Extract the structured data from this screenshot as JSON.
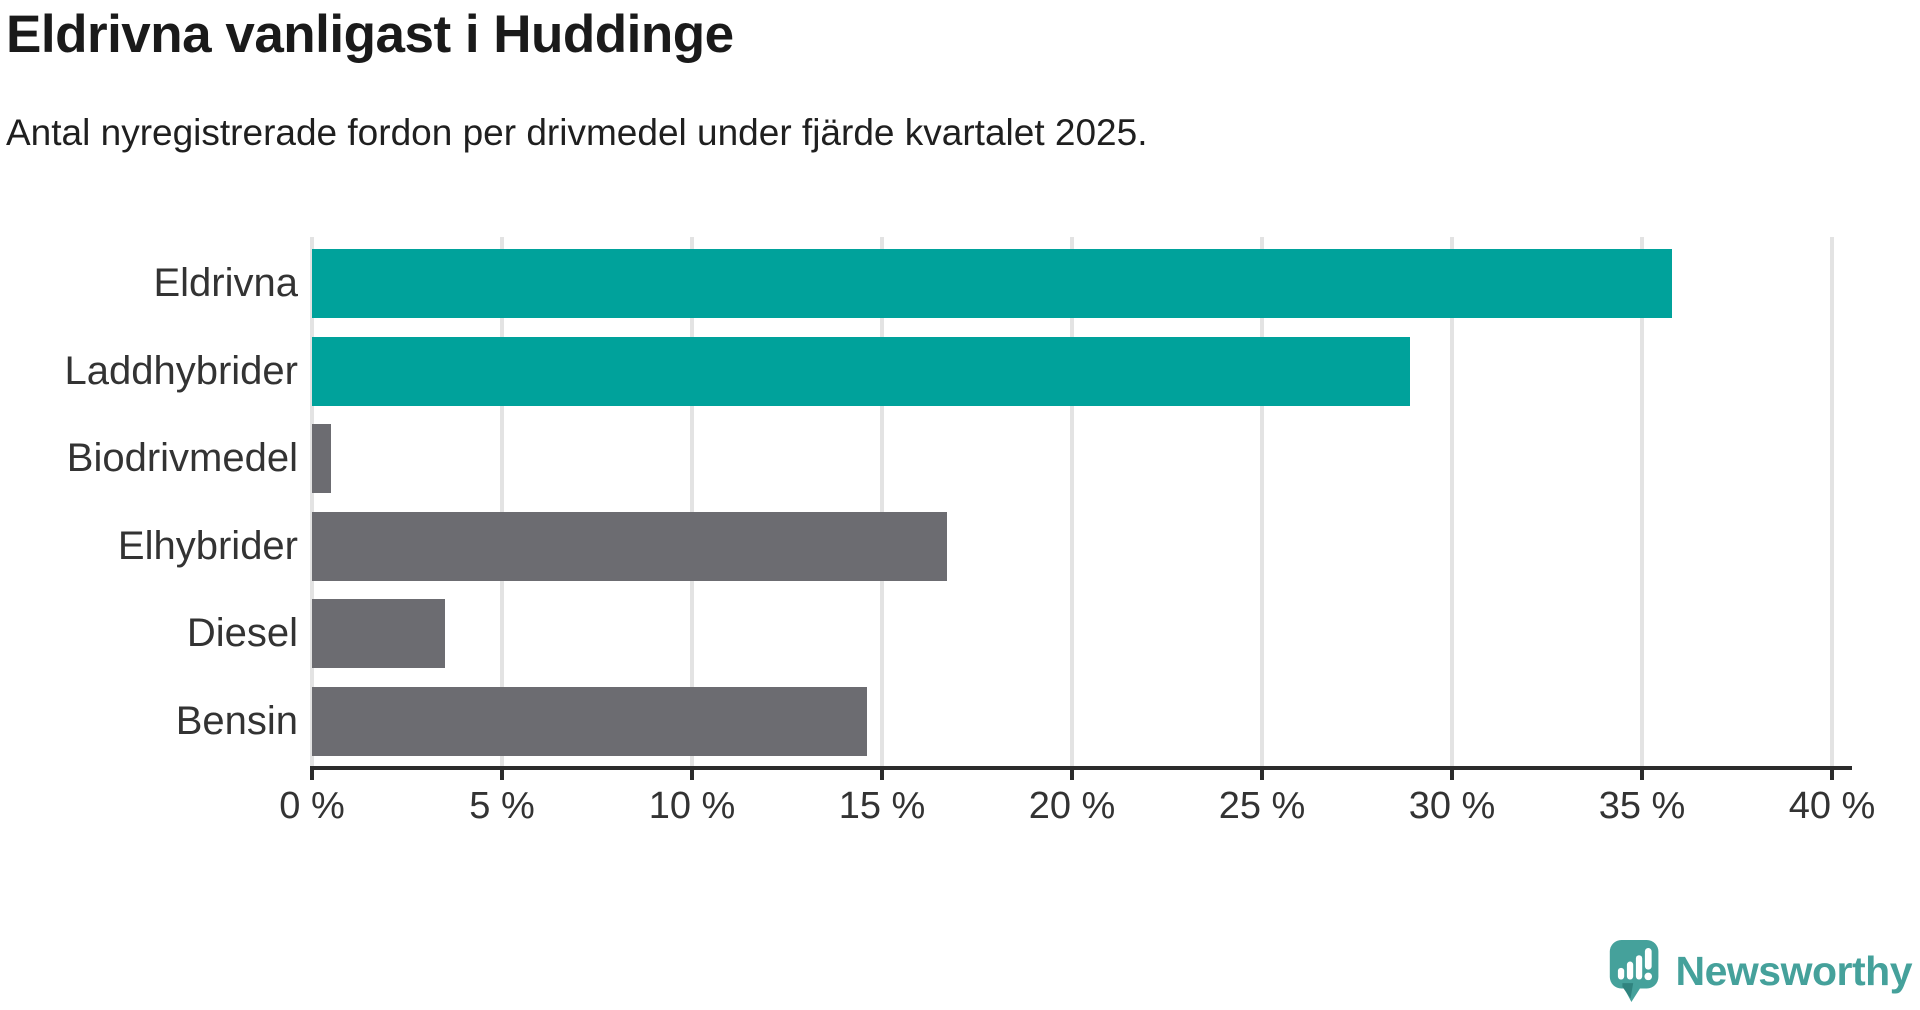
{
  "header": {
    "title": "Eldrivna vanligast i Huddinge",
    "subtitle": "Antal nyregistrerade fordon per drivmedel under fjärde kvartalet 2025."
  },
  "chart_data": {
    "type": "bar",
    "orientation": "horizontal",
    "title": "Eldrivna vanligast i Huddinge",
    "categories": [
      "Eldrivna",
      "Laddhybrider",
      "Biodrivmedel",
      "Elhybrider",
      "Diesel",
      "Bensin"
    ],
    "values": [
      35.8,
      28.9,
      0.5,
      16.7,
      3.5,
      14.6
    ],
    "unit": "%",
    "bar_colors": [
      "#00a29b",
      "#00a29b",
      "#6c6c71",
      "#6c6c71",
      "#6c6c71",
      "#6c6c71"
    ],
    "xlim": [
      0,
      40
    ],
    "x_ticks": [
      0,
      5,
      10,
      15,
      20,
      25,
      30,
      35,
      40
    ],
    "x_tick_suffix": " %",
    "grid": "vertical-only",
    "legend": "none",
    "xlabel": "",
    "ylabel": ""
  },
  "footer": {
    "brand": "Newsworthy",
    "logo_icon": "newsworthy-speech-bubble-barchart-icon"
  },
  "colors": {
    "teal": "#00a29b",
    "gray": "#6c6c71",
    "gridline": "#e3e3e3",
    "axis_line": "#2b2b2b",
    "label_text": "#333333",
    "title_text": "#1a1a1a",
    "brand_teal": "#45a19b",
    "brand_teal_dark": "#2f837e",
    "background": "#ffffff"
  }
}
